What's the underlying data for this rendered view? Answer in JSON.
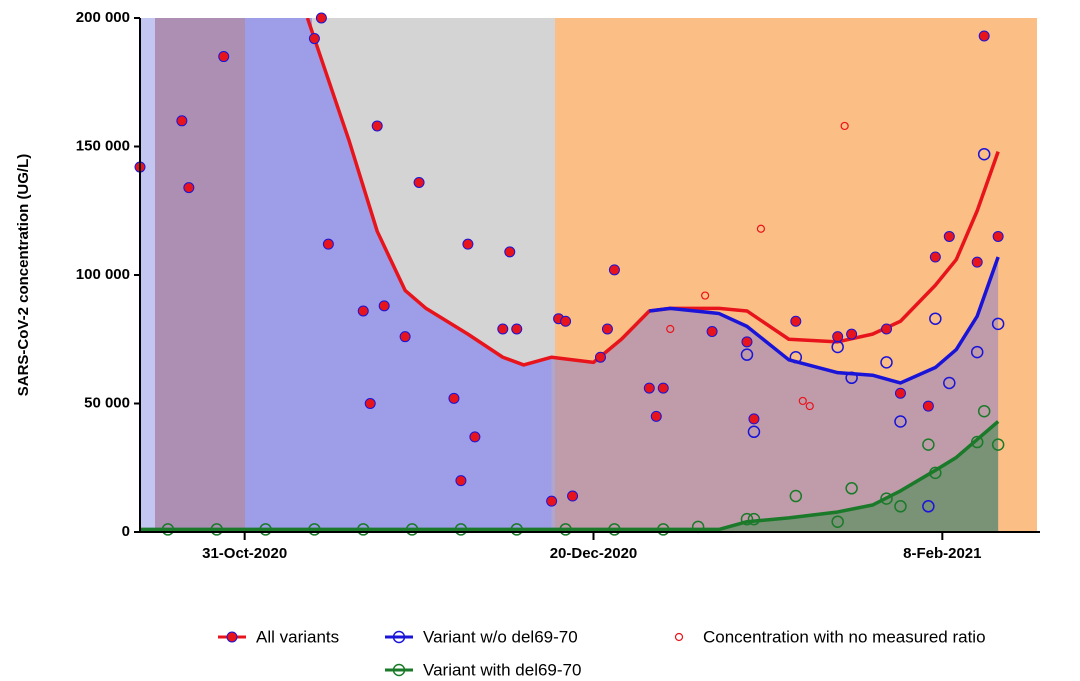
{
  "chart_data": {
    "type": "line",
    "ylabel": "SARS-CoV-2 concentration (UG/L)",
    "xlim": [
      "2020-10-16",
      "2021-02-22"
    ],
    "xticks": [
      {
        "value": "2020-10-31",
        "label": "31-Oct-2020"
      },
      {
        "value": "2020-12-20",
        "label": "20-Dec-2020"
      },
      {
        "value": "2021-02-08",
        "label": "8-Feb-2021"
      }
    ],
    "ylim": [
      0,
      200000
    ],
    "yticks": [
      {
        "value": 0,
        "label": "0"
      },
      {
        "value": 50000,
        "label": "50 000"
      },
      {
        "value": 100000,
        "label": "100 000"
      },
      {
        "value": 150000,
        "label": "150 000"
      },
      {
        "value": 200000,
        "label": "200 000"
      }
    ],
    "x": [
      "2020-10-16",
      "2020-11-09",
      "2020-11-12",
      "2020-11-15",
      "2020-11-19",
      "2020-11-23",
      "2020-11-26",
      "2020-12-02",
      "2020-12-07",
      "2020-12-10",
      "2020-12-14",
      "2020-12-20",
      "2020-12-24",
      "2020-12-28",
      "2020-12-31",
      "2021-01-07",
      "2021-01-11",
      "2021-01-17",
      "2021-01-24",
      "2021-01-29",
      "2021-02-02",
      "2021-02-07",
      "2021-02-10",
      "2021-02-13",
      "2021-02-16"
    ],
    "series": [
      {
        "name": "All variants",
        "color": "#e8141c",
        "values": [
          null,
          200000,
          176000,
          152000,
          117000,
          94000,
          87000,
          77000,
          68000,
          65000,
          68000,
          66000,
          75000,
          86000,
          87000,
          87000,
          86000,
          75000,
          74000,
          77000,
          82000,
          96000,
          106000,
          125000,
          148000
        ],
        "points": {
          "x": [
            "2020-10-16",
            "2020-10-22",
            "2020-10-23",
            "2020-10-28",
            "2020-11-10",
            "2020-11-11",
            "2020-11-12",
            "2020-11-17",
            "2020-11-18",
            "2020-11-19",
            "2020-11-20",
            "2020-11-23",
            "2020-11-25",
            "2020-11-30",
            "2020-12-01",
            "2020-12-02",
            "2020-12-03",
            "2020-12-07",
            "2020-12-08",
            "2020-12-09",
            "2020-12-14",
            "2020-12-15",
            "2020-12-16",
            "2020-12-17",
            "2020-12-21",
            "2020-12-22",
            "2020-12-23",
            "2020-12-28",
            "2020-12-29",
            "2020-12-30",
            "2021-01-06",
            "2021-01-11",
            "2021-01-12",
            "2021-01-18",
            "2021-01-24",
            "2021-01-26",
            "2021-01-31",
            "2021-02-02",
            "2021-02-06",
            "2021-02-07",
            "2021-02-09",
            "2021-02-13",
            "2021-02-14",
            "2021-02-16"
          ],
          "values": [
            142000,
            160000,
            134000,
            185000,
            192000,
            200000,
            112000,
            86000,
            50000,
            158000,
            88000,
            76000,
            136000,
            52000,
            20000,
            112000,
            37000,
            79000,
            109000,
            79000,
            12000,
            83000,
            82000,
            14000,
            68000,
            79000,
            102000,
            56000,
            45000,
            56000,
            78000,
            74000,
            44000,
            82000,
            76000,
            77000,
            79000,
            54000,
            49000,
            107000,
            115000,
            105000,
            193000,
            115000
          ]
        }
      },
      {
        "name": "Variant w/o del69-70",
        "color": "#1a14d8",
        "values": [
          null,
          null,
          null,
          null,
          null,
          null,
          null,
          null,
          null,
          null,
          null,
          null,
          null,
          86000,
          87000,
          85000,
          80000,
          67000,
          62000,
          61000,
          58000,
          64000,
          71000,
          84000,
          107000
        ],
        "points": {
          "x": [
            "2021-01-11",
            "2021-01-12",
            "2021-01-18",
            "2021-01-24",
            "2021-01-26",
            "2021-01-31",
            "2021-02-02",
            "2021-02-06",
            "2021-02-07",
            "2021-02-09",
            "2021-02-13",
            "2021-02-14",
            "2021-02-16"
          ],
          "values": [
            69000,
            39000,
            68000,
            72000,
            60000,
            66000,
            43000,
            10000,
            83000,
            58000,
            70000,
            147000,
            81000
          ]
        }
      },
      {
        "name": "Variant with del69-70",
        "color": "#1a7a2a",
        "values": [
          1000,
          1000,
          1000,
          1000,
          1000,
          1000,
          1000,
          1000,
          1000,
          1000,
          1000,
          1000,
          1000,
          1000,
          1000,
          1000,
          4000,
          5500,
          7800,
          10500,
          16000,
          24000,
          29000,
          36000,
          43000
        ],
        "points": {
          "x": [
            "2020-10-20",
            "2020-10-27",
            "2020-11-03",
            "2020-11-10",
            "2020-11-17",
            "2020-11-24",
            "2020-12-01",
            "2020-12-09",
            "2020-12-16",
            "2020-12-23",
            "2020-12-30",
            "2021-01-04",
            "2021-01-11",
            "2021-01-12",
            "2021-01-18",
            "2021-01-24",
            "2021-01-26",
            "2021-01-31",
            "2021-02-02",
            "2021-02-06",
            "2021-02-07",
            "2021-02-13",
            "2021-02-14",
            "2021-02-16"
          ],
          "values": [
            1000,
            1000,
            1000,
            1000,
            1000,
            1000,
            1000,
            1000,
            1000,
            1000,
            1000,
            2000,
            5000,
            5000,
            14000,
            4000,
            17000,
            13000,
            10000,
            34000,
            23000,
            35000,
            47000,
            34000
          ]
        }
      },
      {
        "name": "Concentration with no measured ratio",
        "color": "#e8141c",
        "points": {
          "x": [
            "2020-12-31",
            "2021-01-05",
            "2021-01-13",
            "2021-01-19",
            "2021-01-20",
            "2021-01-25"
          ],
          "values": [
            79000,
            92000,
            118000,
            51000,
            49000,
            158000
          ]
        }
      }
    ]
  }
}
